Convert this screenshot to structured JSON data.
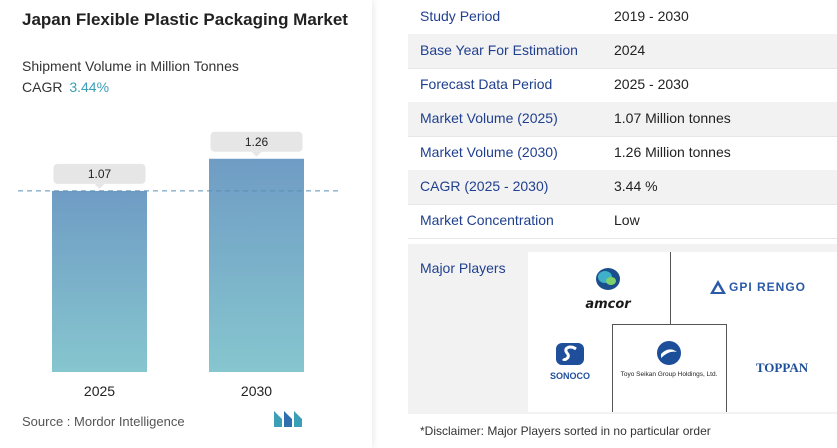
{
  "title": "Japan Flexible Plastic Packaging Market",
  "subtitle": "Shipment Volume in Million Tonnes",
  "cagr_label": "CAGR",
  "cagr_value": "3.44%",
  "source": "Source :  Mordor Intelligence",
  "chart_data": {
    "type": "bar",
    "categories": [
      "2025",
      "2030"
    ],
    "values": [
      1.07,
      1.26
    ],
    "data_labels": [
      "1.07",
      "1.26"
    ],
    "ylim": [
      0,
      1.3
    ],
    "reference_line": 1.07,
    "bar_color_top": "#6f9cc4",
    "bar_color_bottom": "#86c6cf",
    "grid": false
  },
  "facts": [
    {
      "label": "Study Period",
      "value": "2019 - 2030"
    },
    {
      "label": "Base Year For Estimation",
      "value": "2024"
    },
    {
      "label": "Forecast Data Period",
      "value": "2025 - 2030"
    },
    {
      "label": "Market Volume (2025)",
      "value": "1.07 Million tonnes"
    },
    {
      "label": "Market Volume (2030)",
      "value": "1.26 Million tonnes"
    },
    {
      "label": "CAGR (2025 - 2030)",
      "value": "3.44 %"
    },
    {
      "label": "Market Concentration",
      "value": "Low"
    }
  ],
  "players": {
    "label": "Major Players",
    "logos": [
      "amcor",
      "GPI RENGO",
      "SONOCO",
      "Toyo Seikan Group Holdings, Ltd.",
      "TOPPAN"
    ]
  },
  "disclaimer": "*Disclaimer: Major Players sorted in no particular order",
  "colors": {
    "accent": "#3a9fb7",
    "label_blue": "#1f3f8f"
  }
}
